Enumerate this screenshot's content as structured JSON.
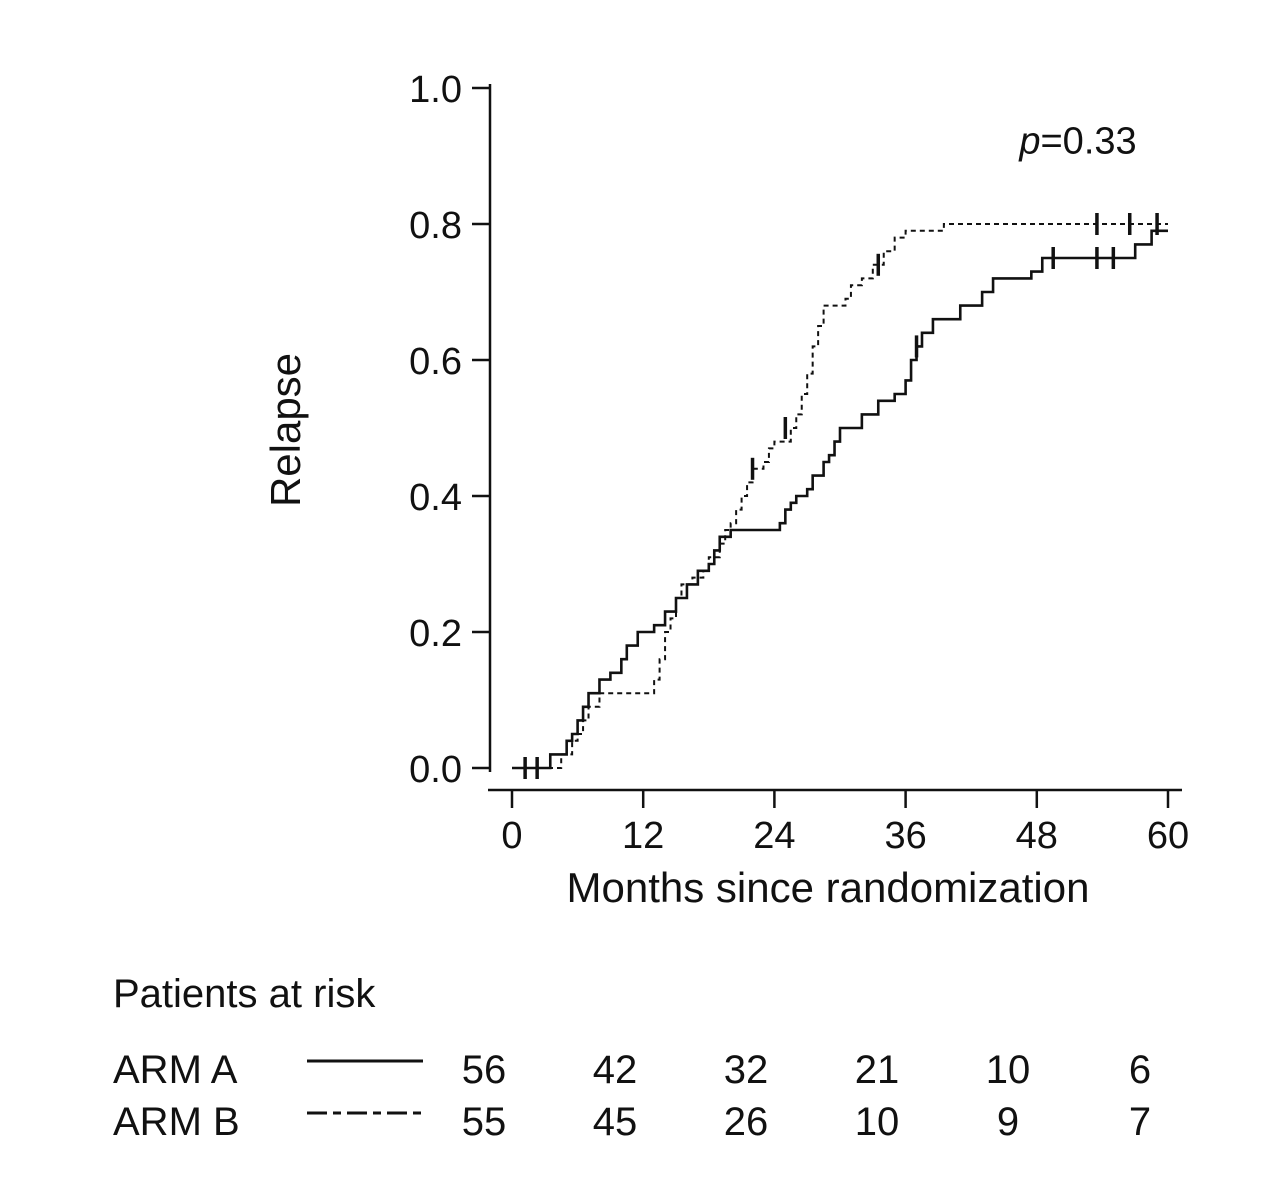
{
  "figure": {
    "y_axis_label": "Relapse",
    "x_axis_label": "Months since randomization",
    "p_value": {
      "symbol": "p",
      "rest": "=0.33"
    },
    "line_color": "#111111",
    "background": "#ffffff"
  },
  "at_risk": {
    "title": "Patients at risk",
    "rows": [
      {
        "label": "ARM A",
        "style": "solid",
        "counts": [
          56,
          42,
          32,
          21,
          10,
          6
        ]
      },
      {
        "label": "ARM B",
        "style": "dashed",
        "counts": [
          55,
          45,
          26,
          10,
          9,
          7
        ]
      }
    ]
  },
  "chart_data": {
    "type": "line",
    "subtype": "kaplan-meier-cumulative-incidence-step",
    "title": "",
    "xlabel": "Months since randomization",
    "ylabel": "Relapse",
    "annotation": "p=0.33",
    "xlim": [
      0,
      60
    ],
    "ylim": [
      0.0,
      1.0
    ],
    "x_ticks": [
      0,
      12,
      24,
      36,
      48,
      60
    ],
    "y_ticks": [
      0.0,
      0.2,
      0.4,
      0.6,
      0.8,
      1.0
    ],
    "grid": false,
    "legend_position": "at-risk-table",
    "series": [
      {
        "name": "ARM A",
        "line": "solid",
        "steps": [
          [
            0,
            0.0
          ],
          [
            3.5,
            0.02
          ],
          [
            5,
            0.04
          ],
          [
            5.5,
            0.05
          ],
          [
            6,
            0.07
          ],
          [
            6.5,
            0.09
          ],
          [
            7,
            0.11
          ],
          [
            8,
            0.13
          ],
          [
            9,
            0.14
          ],
          [
            10,
            0.16
          ],
          [
            10.5,
            0.18
          ],
          [
            11.5,
            0.2
          ],
          [
            13,
            0.21
          ],
          [
            14,
            0.23
          ],
          [
            15,
            0.25
          ],
          [
            16,
            0.27
          ],
          [
            17,
            0.29
          ],
          [
            18,
            0.3
          ],
          [
            18.5,
            0.32
          ],
          [
            19,
            0.34
          ],
          [
            20,
            0.35
          ],
          [
            24.5,
            0.36
          ],
          [
            25,
            0.38
          ],
          [
            25.5,
            0.39
          ],
          [
            26,
            0.4
          ],
          [
            27,
            0.41
          ],
          [
            27.5,
            0.43
          ],
          [
            28.5,
            0.45
          ],
          [
            29,
            0.46
          ],
          [
            29.5,
            0.48
          ],
          [
            30,
            0.5
          ],
          [
            32,
            0.52
          ],
          [
            33.5,
            0.54
          ],
          [
            35,
            0.55
          ],
          [
            36,
            0.57
          ],
          [
            36.5,
            0.6
          ],
          [
            37,
            0.62
          ],
          [
            37.5,
            0.64
          ],
          [
            38.5,
            0.66
          ],
          [
            41,
            0.68
          ],
          [
            43,
            0.7
          ],
          [
            44,
            0.72
          ],
          [
            47.5,
            0.73
          ],
          [
            48.5,
            0.75
          ],
          [
            57,
            0.77
          ],
          [
            58.5,
            0.79
          ]
        ],
        "censors": [
          [
            1.2,
            0.0
          ],
          [
            2.3,
            0.0
          ],
          [
            37,
            0.62
          ],
          [
            49.5,
            0.75
          ],
          [
            53.5,
            0.75
          ],
          [
            55,
            0.75
          ]
        ]
      },
      {
        "name": "ARM B",
        "line": "dashed",
        "steps": [
          [
            0,
            0.0
          ],
          [
            4.5,
            0.02
          ],
          [
            5.5,
            0.04
          ],
          [
            6,
            0.05
          ],
          [
            6.5,
            0.07
          ],
          [
            7,
            0.09
          ],
          [
            8,
            0.11
          ],
          [
            13,
            0.13
          ],
          [
            13.5,
            0.16
          ],
          [
            14,
            0.2
          ],
          [
            14.5,
            0.22
          ],
          [
            15,
            0.25
          ],
          [
            15.5,
            0.27
          ],
          [
            16.5,
            0.28
          ],
          [
            17.5,
            0.29
          ],
          [
            18,
            0.31
          ],
          [
            19,
            0.33
          ],
          [
            19.5,
            0.35
          ],
          [
            20,
            0.36
          ],
          [
            20.5,
            0.38
          ],
          [
            21,
            0.4
          ],
          [
            21.5,
            0.42
          ],
          [
            22,
            0.44
          ],
          [
            23,
            0.45
          ],
          [
            23.5,
            0.47
          ],
          [
            24,
            0.48
          ],
          [
            25.5,
            0.5
          ],
          [
            26,
            0.52
          ],
          [
            26.5,
            0.55
          ],
          [
            27,
            0.58
          ],
          [
            27.5,
            0.62
          ],
          [
            28,
            0.65
          ],
          [
            28.5,
            0.68
          ],
          [
            30.5,
            0.69
          ],
          [
            31,
            0.71
          ],
          [
            32,
            0.72
          ],
          [
            33,
            0.74
          ],
          [
            34,
            0.76
          ],
          [
            35,
            0.78
          ],
          [
            36,
            0.79
          ],
          [
            39.5,
            0.8
          ]
        ],
        "censors": [
          [
            22,
            0.44
          ],
          [
            25,
            0.5
          ],
          [
            33.5,
            0.74
          ],
          [
            53.5,
            0.8
          ],
          [
            56.5,
            0.8
          ],
          [
            59,
            0.8
          ]
        ]
      }
    ]
  }
}
